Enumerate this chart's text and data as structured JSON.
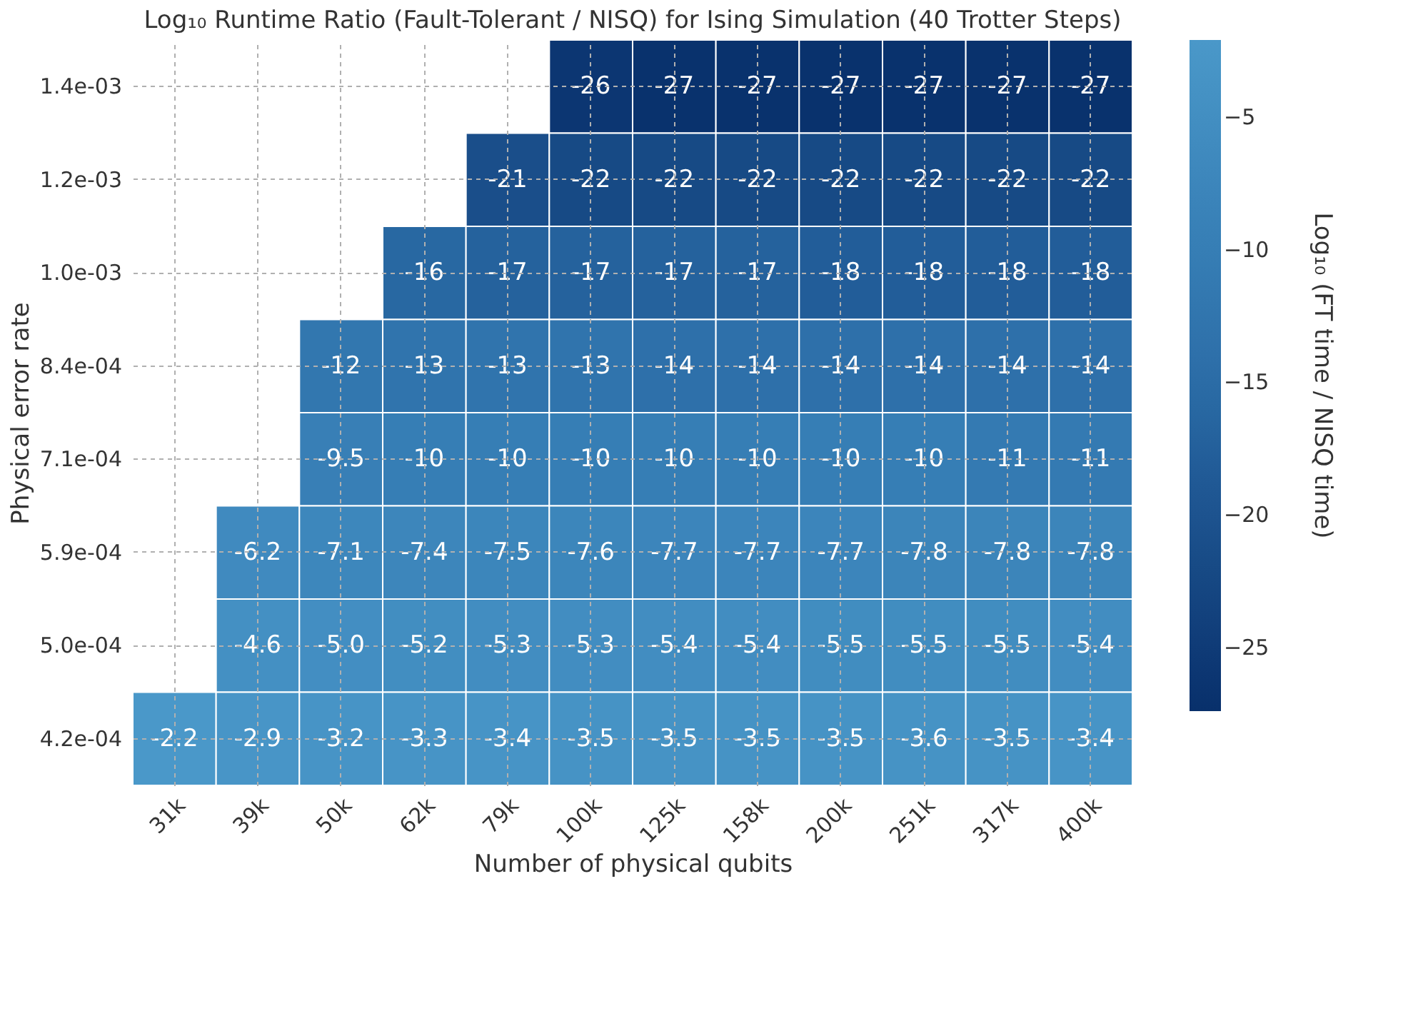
{
  "chart_data": {
    "type": "heatmap",
    "title": "Log₁₀ Runtime Ratio (Fault-Tolerant / NISQ) for Ising Simulation (40 Trotter Steps)",
    "xlabel": "Number of physical qubits",
    "ylabel": "Physical error rate",
    "clabel": "Log₁₀ (FT time / NISQ time)",
    "categories": [
      "31k",
      "39k",
      "50k",
      "62k",
      "79k",
      "100k",
      "125k",
      "158k",
      "200k",
      "251k",
      "317k",
      "400k"
    ],
    "y_categories": [
      "1.4e-03",
      "1.2e-03",
      "1.0e-03",
      "8.4e-04",
      "7.1e-04",
      "5.9e-04",
      "5.0e-04",
      "4.2e-04"
    ],
    "cells": [
      [
        null,
        null,
        null,
        null,
        null,
        -26,
        -27,
        -27,
        -27,
        -27,
        -27,
        -27
      ],
      [
        null,
        null,
        null,
        null,
        -21,
        -22,
        -22,
        -22,
        -22,
        -22,
        -22,
        -22
      ],
      [
        null,
        null,
        null,
        -16,
        -17,
        -17,
        -17,
        -17,
        -18,
        -18,
        -18,
        -18
      ],
      [
        null,
        null,
        -12,
        -13,
        -13,
        -13,
        -14,
        -14,
        -14,
        -14,
        -14,
        -14
      ],
      [
        null,
        null,
        -9.5,
        -10,
        -10,
        -10,
        -10,
        -10,
        -10,
        -10,
        -11,
        -11
      ],
      [
        null,
        -6.2,
        -7.1,
        -7.4,
        -7.5,
        -7.6,
        -7.7,
        -7.7,
        -7.7,
        -7.8,
        -7.8,
        -7.8
      ],
      [
        null,
        -4.6,
        -5.0,
        -5.2,
        -5.3,
        -5.3,
        -5.4,
        -5.4,
        -5.5,
        -5.5,
        -5.5,
        -5.4
      ],
      [
        -2.2,
        -2.9,
        -3.2,
        -3.3,
        -3.4,
        -3.5,
        -3.5,
        -3.5,
        -3.5,
        -3.6,
        -3.5,
        -3.4
      ]
    ],
    "cell_labels": [
      [
        null,
        null,
        null,
        null,
        null,
        "-26",
        "-27",
        "-27",
        "-27",
        "-27",
        "-27",
        "-27"
      ],
      [
        null,
        null,
        null,
        null,
        "-21",
        "-22",
        "-22",
        "-22",
        "-22",
        "-22",
        "-22",
        "-22"
      ],
      [
        null,
        null,
        null,
        "-16",
        "-17",
        "-17",
        "-17",
        "-17",
        "-18",
        "-18",
        "-18",
        "-18"
      ],
      [
        null,
        null,
        "-12",
        "-13",
        "-13",
        "-13",
        "-14",
        "-14",
        "-14",
        "-14",
        "-14",
        "-14"
      ],
      [
        null,
        null,
        "-9.5",
        "-10",
        "-10",
        "-10",
        "-10",
        "-10",
        "-10",
        "-10",
        "-11",
        "-11"
      ],
      [
        null,
        "-6.2",
        "-7.1",
        "-7.4",
        "-7.5",
        "-7.6",
        "-7.7",
        "-7.7",
        "-7.7",
        "-7.8",
        "-7.8",
        "-7.8"
      ],
      [
        null,
        "-4.6",
        "-5.0",
        "-5.2",
        "-5.3",
        "-5.3",
        "-5.4",
        "-5.4",
        "-5.5",
        "-5.5",
        "-5.5",
        "-5.4"
      ],
      [
        "-2.2",
        "-2.9",
        "-3.2",
        "-3.3",
        "-3.4",
        "-3.5",
        "-3.5",
        "-3.5",
        "-3.5",
        "-3.6",
        "-3.5",
        "-3.4"
      ]
    ],
    "clim": [
      -27.4,
      -2.1
    ],
    "cticks": [
      -5,
      -10,
      -15,
      -20,
      -25
    ],
    "grid": true
  }
}
